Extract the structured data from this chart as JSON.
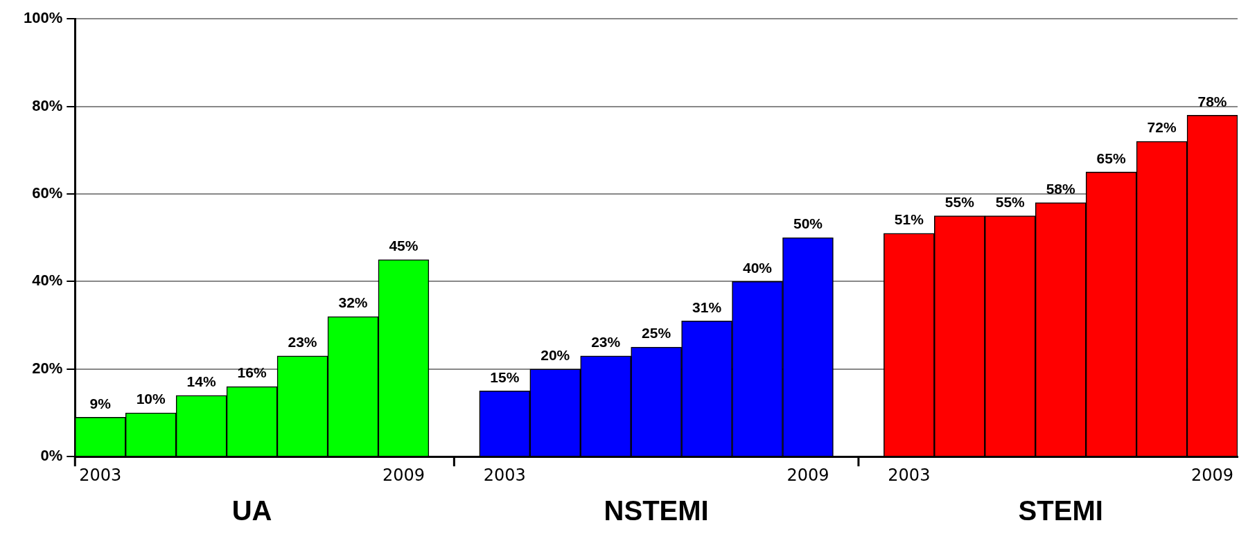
{
  "chart_data": {
    "type": "bar",
    "categories": [
      "2003",
      null,
      null,
      null,
      null,
      null,
      "2009",
      null,
      "2003",
      null,
      null,
      null,
      null,
      null,
      "2009",
      null,
      "2003",
      null,
      null,
      null,
      null,
      null,
      "2009"
    ],
    "series": [
      {
        "name": "UA",
        "color": "#00ff00",
        "values": [
          9,
          10,
          14,
          16,
          23,
          32,
          45,
          null,
          null,
          null,
          null,
          null,
          null,
          null,
          null,
          null,
          null,
          null,
          null,
          null,
          null,
          null,
          null
        ],
        "value_labels": [
          "9%",
          "10%",
          "14%",
          "16%",
          "23%",
          "32%",
          "45%",
          null,
          null,
          null,
          null,
          null,
          null,
          null,
          null,
          null,
          null,
          null,
          null,
          null,
          null,
          null,
          null
        ]
      },
      {
        "name": "NSTEMI",
        "color": "#0000ff",
        "values": [
          null,
          null,
          null,
          null,
          null,
          null,
          null,
          null,
          15,
          20,
          23,
          25,
          31,
          40,
          50,
          null,
          null,
          null,
          null,
          null,
          null,
          null,
          null
        ],
        "value_labels": [
          null,
          null,
          null,
          null,
          null,
          null,
          null,
          null,
          "15%",
          "20%",
          "23%",
          "25%",
          "31%",
          "40%",
          "50%",
          null,
          null,
          null,
          null,
          null,
          null,
          null,
          null
        ]
      },
      {
        "name": "STEMI",
        "color": "#ff0000",
        "values": [
          null,
          null,
          null,
          null,
          null,
          null,
          null,
          null,
          null,
          null,
          null,
          null,
          null,
          null,
          null,
          null,
          51,
          55,
          55,
          58,
          65,
          72,
          78
        ],
        "value_labels": [
          null,
          null,
          null,
          null,
          null,
          null,
          null,
          null,
          null,
          null,
          null,
          null,
          null,
          null,
          null,
          null,
          "51%",
          "55%",
          "55%",
          "58%",
          "65%",
          "72%",
          "78%"
        ]
      }
    ],
    "ylim": [
      0,
      100
    ],
    "yticks": [
      {
        "value": 0,
        "label": "0%"
      },
      {
        "value": 20,
        "label": "20%"
      },
      {
        "value": 40,
        "label": "40%"
      },
      {
        "value": 60,
        "label": "60%"
      },
      {
        "value": 80,
        "label": "80%"
      },
      {
        "value": 100,
        "label": "100%"
      }
    ],
    "grid": "y",
    "legend": false
  }
}
